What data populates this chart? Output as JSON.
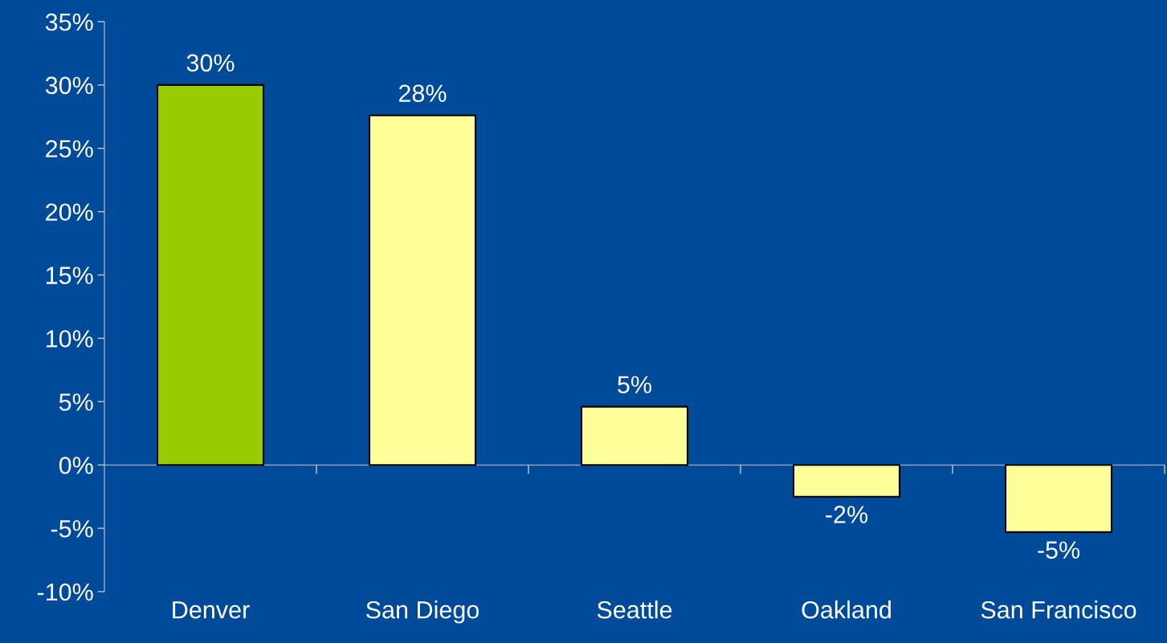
{
  "chart_data": {
    "type": "bar",
    "categories": [
      "Denver",
      "San Diego",
      "Seattle",
      "Oakland",
      "San Francisco"
    ],
    "values": [
      30,
      27.6,
      4.6,
      -2.5,
      -5.3
    ],
    "colors": [
      "#99cc00",
      "#ffff99",
      "#ffff99",
      "#ffff99",
      "#ffff99"
    ],
    "value_labels": [
      "30%",
      "28%",
      "5%",
      "-2%",
      "-5%"
    ],
    "ylim": [
      -10,
      35
    ],
    "yticks": [
      {
        "value": -10,
        "label": "-10%"
      },
      {
        "value": -5,
        "label": "-5%"
      },
      {
        "value": 0,
        "label": "0%"
      },
      {
        "value": 5,
        "label": "5%"
      },
      {
        "value": 10,
        "label": "10%"
      },
      {
        "value": 15,
        "label": "15%"
      },
      {
        "value": 20,
        "label": "20%"
      },
      {
        "value": 25,
        "label": "25%"
      },
      {
        "value": 30,
        "label": "30%"
      },
      {
        "value": 35,
        "label": "35%"
      }
    ],
    "legend": false
  }
}
